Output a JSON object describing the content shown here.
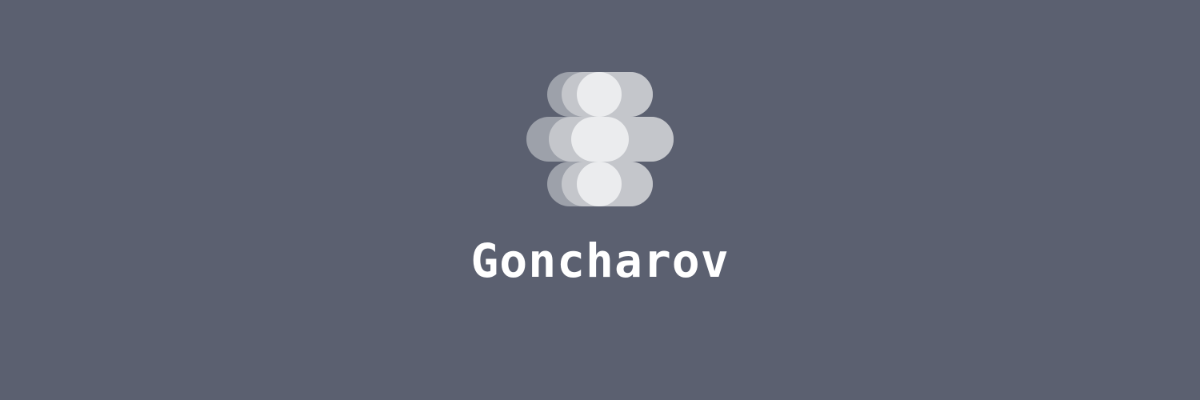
{
  "brand": {
    "name": "Goncharov",
    "logo_icon": "stacked-discs-logo-icon"
  },
  "colors": {
    "background": "#5b6070",
    "text": "#ffffff",
    "logo_light": "#ebecee",
    "logo_mid": "#c4c6cb",
    "logo_dark": "#9da1aa"
  }
}
